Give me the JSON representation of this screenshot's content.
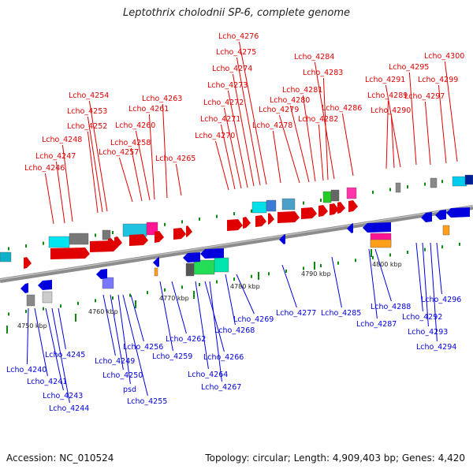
{
  "header": {
    "title": "Leptothrix cholodnii SP-6, complete genome"
  },
  "footer": {
    "accession": "Accession: NC_010524",
    "summary": "Topology: circular; Length: 4,909,403 bp; Genes: 4,420"
  },
  "colors": {
    "forward": "#e00000",
    "reverse": "#0000dd",
    "backbone": "#8c8c8c",
    "tick": "#0a8a0a"
  },
  "kbp_labels": [
    "4750 kbp",
    "4760 kbp",
    "4770 kbp",
    "4780 kbp",
    "4790 kbp",
    "4800 kbp"
  ],
  "forward_genes": [
    "Lcho_4246",
    "Lcho_4247",
    "Lcho_4248",
    "Lcho_4252",
    "Lcho_4253",
    "Lcho_4254",
    "Lcho_4257",
    "Lcho_4258",
    "Lcho_4260",
    "Lcho_4261",
    "Lcho_4263",
    "Lcho_4265",
    "Lcho_4270",
    "Lcho_4271",
    "Lcho_4272",
    "Lcho_4273",
    "Lcho_4274",
    "Lcho_4275",
    "Lcho_4276",
    "Lcho_4278",
    "Lcho_4279",
    "Lcho_4280",
    "Lcho_4281",
    "Lcho_4282",
    "Lcho_4283",
    "Lcho_4284",
    "Lcho_4286",
    "Lcho_4289",
    "Lcho_4290",
    "Lcho_4291",
    "Lcho_4295",
    "Lcho_4297",
    "Lcho_4299",
    "Lcho_4300"
  ],
  "reverse_genes": [
    "Lcho_4240",
    "Lcho_4241",
    "Lcho_4243",
    "Lcho_4244",
    "Lcho_4245",
    "Lcho_4249",
    "Lcho_4250",
    "psd",
    "Lcho_4255",
    "Lcho_4256",
    "Lcho_4259",
    "Lcho_4262",
    "Lcho_4264",
    "Lcho_4266",
    "Lcho_4267",
    "Lcho_4268",
    "Lcho_4269",
    "Lcho_4277",
    "Lcho_4285",
    "Lcho_4287",
    "Lcho_4288",
    "Lcho_4292",
    "Lcho_4293",
    "Lcho_4294",
    "Lcho_4296"
  ]
}
